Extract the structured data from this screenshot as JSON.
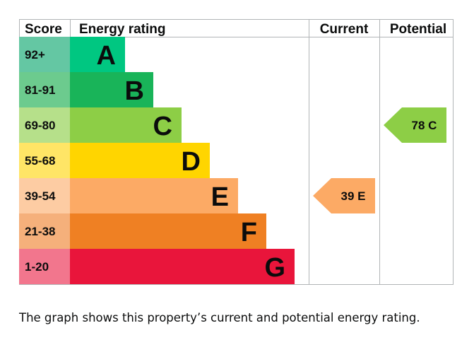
{
  "chart_data": {
    "type": "bar",
    "headers": {
      "score": "Score",
      "energy_rating": "Energy rating",
      "current": "Current",
      "potential": "Potential"
    },
    "bands": [
      {
        "score": "92+",
        "letter": "A",
        "color": "#008054",
        "score_bg": "#64c7a3",
        "bar": "#00c781"
      },
      {
        "score": "81-91",
        "letter": "B",
        "color": "#19b459",
        "score_bg": "#6ccb8e",
        "bar": "#19b459"
      },
      {
        "score": "69-80",
        "letter": "C",
        "color": "#8dce46",
        "score_bg": "#b6e08a",
        "bar": "#8dce46"
      },
      {
        "score": "55-68",
        "letter": "D",
        "color": "#ffd500",
        "score_bg": "#ffe566",
        "bar": "#ffd500"
      },
      {
        "score": "39-54",
        "letter": "E",
        "color": "#fcaa65",
        "score_bg": "#fdcca3",
        "bar": "#fcaa65"
      },
      {
        "score": "21-38",
        "letter": "F",
        "color": "#ef8023",
        "score_bg": "#f5b07b",
        "bar": "#ef8023"
      },
      {
        "score": "1-20",
        "letter": "G",
        "color": "#e9153b",
        "score_bg": "#f2768d",
        "bar": "#e9153b"
      }
    ],
    "current": {
      "value": 39,
      "band": "E",
      "label": "39  E",
      "color": "#fcaa65"
    },
    "potential": {
      "value": 78,
      "band": "C",
      "label": "78  C",
      "color": "#8dce46"
    }
  },
  "caption": "The graph shows this property’s current and potential energy rating."
}
